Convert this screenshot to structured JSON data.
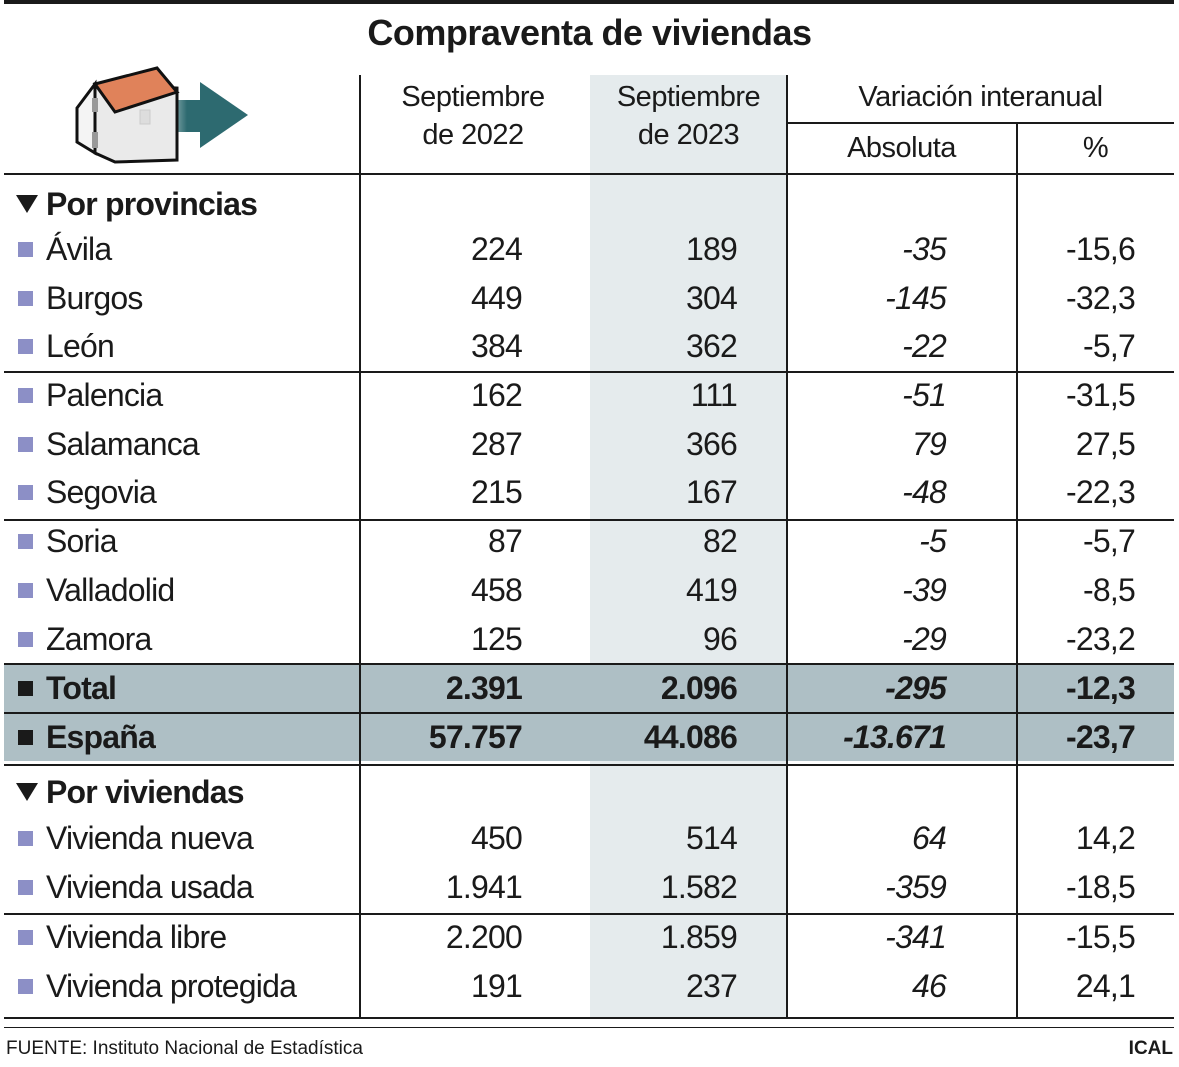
{
  "title": "Compraventa de viviendas",
  "icon": "house-with-arrow-icon",
  "colors": {
    "highlight_row": "#aebfc5",
    "highlight_column": "#e5ebed",
    "bullet": "#8c8fc6",
    "arrow": "#2d6a70",
    "roof": "#e0825a"
  },
  "headers": {
    "col1": [
      "Septiembre",
      "de 2022"
    ],
    "col2": [
      "Septiembre",
      "de 2023"
    ],
    "group": "Variación interanual",
    "abs": "Absoluta",
    "pct": "%"
  },
  "sections": [
    {
      "label": "Por provincias",
      "rows": [
        {
          "name": "Ávila",
          "v2022": "224",
          "v2023": "189",
          "abs": "-35",
          "pct": "-15,6"
        },
        {
          "name": "Burgos",
          "v2022": "449",
          "v2023": "304",
          "abs": "-145",
          "pct": "-32,3"
        },
        {
          "name": "León",
          "v2022": "384",
          "v2023": "362",
          "abs": "-22",
          "pct": "-5,7"
        },
        {
          "name": "Palencia",
          "v2022": "162",
          "v2023": "111",
          "abs": "-51",
          "pct": "-31,5"
        },
        {
          "name": "Salamanca",
          "v2022": "287",
          "v2023": "366",
          "abs": "79",
          "pct": "27,5"
        },
        {
          "name": "Segovia",
          "v2022": "215",
          "v2023": "167",
          "abs": "-48",
          "pct": "-22,3"
        },
        {
          "name": "Soria",
          "v2022": "87",
          "v2023": "82",
          "abs": "-5",
          "pct": "-5,7"
        },
        {
          "name": "Valladolid",
          "v2022": "458",
          "v2023": "419",
          "abs": "-39",
          "pct": "-8,5"
        },
        {
          "name": "Zamora",
          "v2022": "125",
          "v2023": "96",
          "abs": "-29",
          "pct": "-23,2"
        },
        {
          "name": "Total",
          "v2022": "2.391",
          "v2023": "2.096",
          "abs": "-295",
          "pct": "-12,3",
          "bold": true
        },
        {
          "name": "España",
          "v2022": "57.757",
          "v2023": "44.086",
          "abs": "-13.671",
          "pct": "-23,7",
          "bold": true
        }
      ]
    },
    {
      "label": "Por viviendas",
      "rows": [
        {
          "name": "Vivienda nueva",
          "v2022": "450",
          "v2023": "514",
          "abs": "64",
          "pct": "14,2"
        },
        {
          "name": "Vivienda usada",
          "v2022": "1.941",
          "v2023": "1.582",
          "abs": "-359",
          "pct": "-18,5"
        },
        {
          "name": "Vivienda libre",
          "v2022": "2.200",
          "v2023": "1.859",
          "abs": "-341",
          "pct": "-15,5"
        },
        {
          "name": "Vivienda protegida",
          "v2022": "191",
          "v2023": "237",
          "abs": "46",
          "pct": "24,1"
        }
      ]
    }
  ],
  "footer": {
    "source": "FUENTE: Instituto Nacional de Estadística",
    "brand": "ICAL"
  },
  "chart_data": {
    "type": "table",
    "title": "Compraventa de viviendas",
    "columns": [
      "",
      "Septiembre de 2022",
      "Septiembre de 2023",
      "Variación interanual Absoluta",
      "Variación interanual %"
    ]
  }
}
